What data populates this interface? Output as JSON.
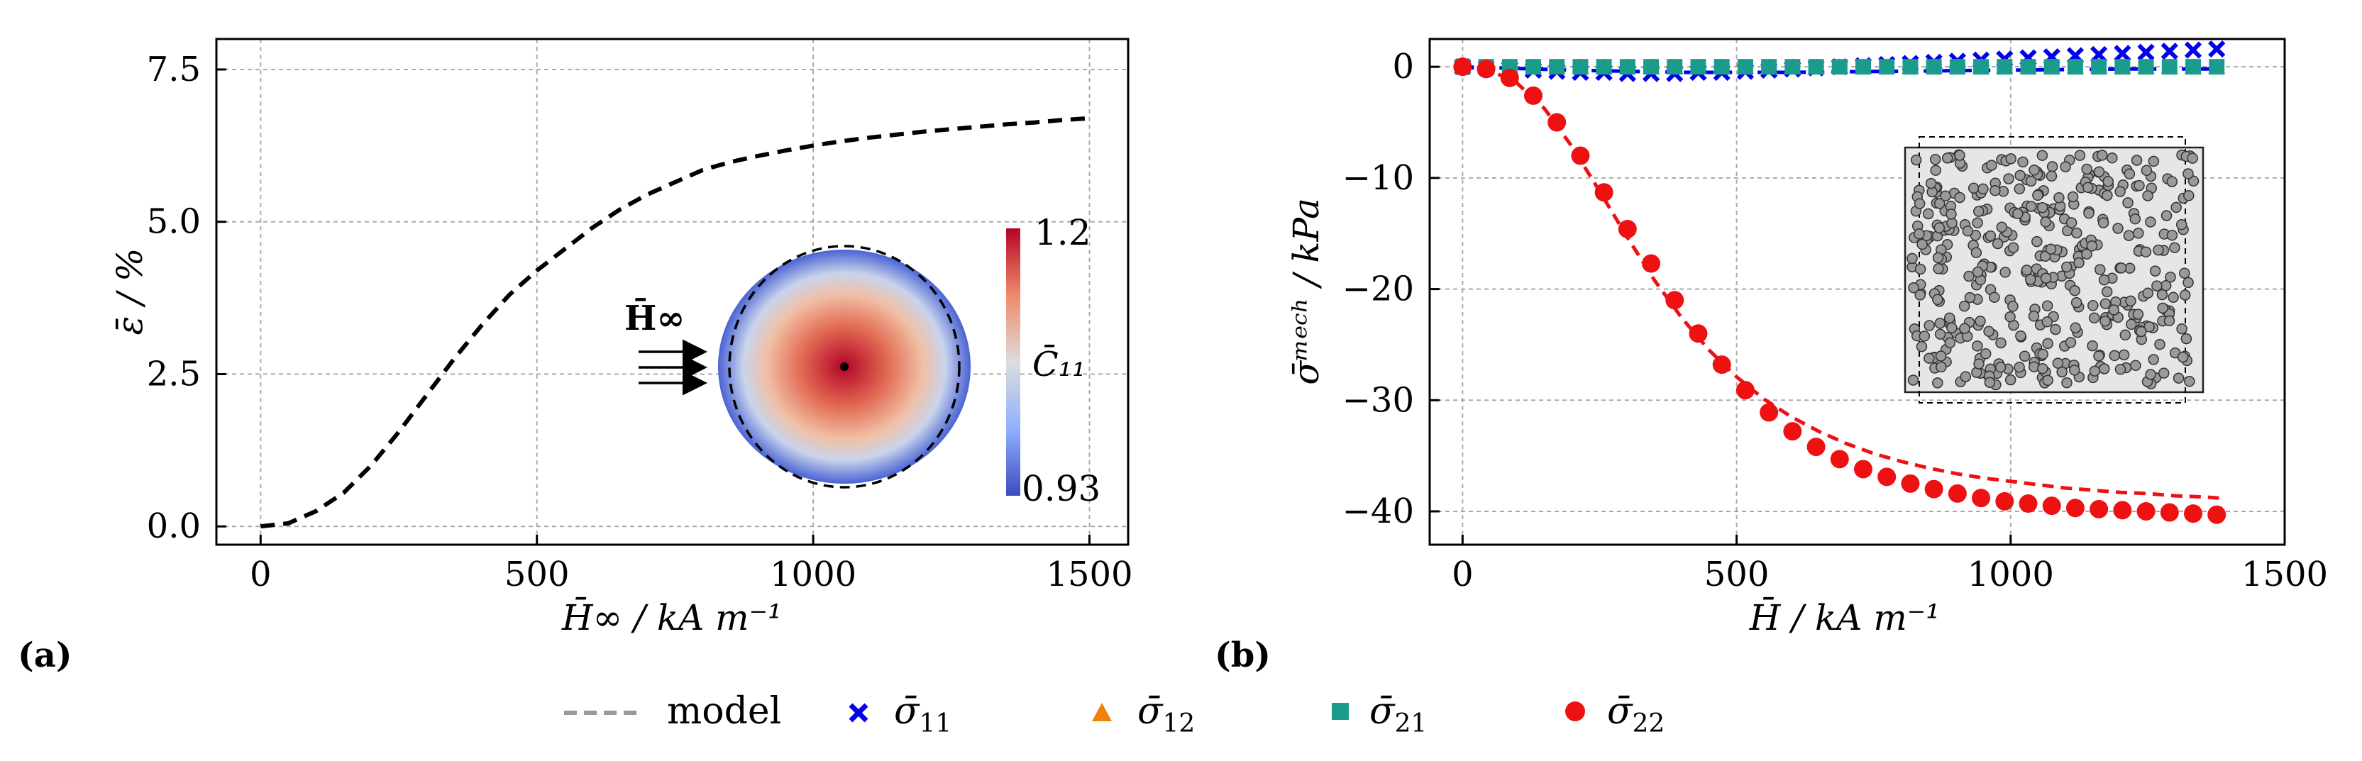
{
  "chart_data": [
    {
      "panel": "(a)",
      "type": "line",
      "xlabel": "H̄∞ / kA m⁻¹",
      "ylabel": "ε̄ / %",
      "xlim": [
        -80,
        1570
      ],
      "ylim": [
        -0.3,
        8.0
      ],
      "xticks": [
        0,
        500,
        1000,
        1500
      ],
      "xtick_labels": [
        "0",
        "500",
        "1000",
        "1500"
      ],
      "yticks": [
        0.0,
        2.5,
        5.0,
        7.5
      ],
      "ytick_labels": [
        "0.0",
        "2.5",
        "5.0",
        "7.5"
      ],
      "grid": true,
      "series": [
        {
          "name": "model",
          "style": "dashed",
          "color": "#000000",
          "x": [
            0,
            50,
            100,
            150,
            200,
            250,
            300,
            350,
            400,
            450,
            500,
            550,
            600,
            650,
            700,
            750,
            800,
            850,
            900,
            950,
            1000,
            1050,
            1100,
            1150,
            1200,
            1250,
            1300,
            1350,
            1400,
            1450,
            1500
          ],
          "y": [
            0.0,
            0.05,
            0.25,
            0.55,
            1.0,
            1.55,
            2.15,
            2.75,
            3.3,
            3.8,
            4.2,
            4.55,
            4.9,
            5.2,
            5.45,
            5.65,
            5.85,
            5.98,
            6.08,
            6.17,
            6.25,
            6.32,
            6.38,
            6.43,
            6.48,
            6.52,
            6.56,
            6.6,
            6.63,
            6.67,
            6.7
          ]
        }
      ],
      "inset": {
        "field_label": "C̄₁₁",
        "colorbar_max": "1.2",
        "colorbar_min": "0.93",
        "field_arrow_label": "H̄∞",
        "colors": {
          "high": "#b40426",
          "mid": "#dddddd",
          "low": "#3b4cc0"
        }
      }
    },
    {
      "panel": "(b)",
      "type": "scatter",
      "xlabel": "H̄ / kA m⁻¹",
      "ylabel": "σ̄ᵐᵉᶜʰ / kPa",
      "xlim": [
        -60,
        1500
      ],
      "ylim": [
        -43,
        2.5
      ],
      "xticks": [
        0,
        500,
        1000,
        1500
      ],
      "xtick_labels": [
        "0",
        "500",
        "1000",
        "1500"
      ],
      "yticks": [
        0,
        -10,
        -20,
        -30,
        -40
      ],
      "ytick_labels": [
        "0",
        "−10",
        "−20",
        "−30",
        "−40"
      ],
      "grid": true,
      "x": [
        0,
        43,
        86,
        129,
        172,
        215,
        258,
        301,
        344,
        387,
        430,
        473,
        516,
        559,
        602,
        645,
        688,
        731,
        774,
        817,
        860,
        903,
        946,
        989,
        1032,
        1075,
        1118,
        1161,
        1204,
        1247,
        1290,
        1333,
        1376
      ],
      "series": [
        {
          "name": "σ̄₁₁",
          "marker": "x",
          "color": "#0000ee",
          "y": [
            0,
            -0.1,
            -0.2,
            -0.3,
            -0.4,
            -0.5,
            -0.5,
            -0.6,
            -0.6,
            -0.6,
            -0.5,
            -0.5,
            -0.4,
            -0.3,
            -0.2,
            -0.1,
            0.0,
            0.1,
            0.2,
            0.3,
            0.4,
            0.5,
            0.6,
            0.7,
            0.8,
            0.9,
            1.0,
            1.1,
            1.2,
            1.3,
            1.4,
            1.5,
            1.6
          ]
        },
        {
          "name": "σ̄₁₂",
          "marker": "triangle",
          "color": "#f0820a",
          "y": [
            0,
            0,
            0,
            0,
            0,
            0,
            0,
            0,
            0,
            0,
            0,
            0,
            0,
            0,
            0,
            0,
            0,
            0,
            0,
            0,
            0,
            0,
            0,
            0,
            0,
            0,
            0,
            0,
            0,
            0,
            0,
            0,
            0
          ]
        },
        {
          "name": "σ̄₂₁",
          "marker": "square",
          "color": "#1a9b8c",
          "y": [
            0,
            0,
            0,
            0,
            0,
            0,
            0,
            0,
            0,
            0,
            0,
            0,
            0,
            0,
            0,
            0,
            0,
            0,
            0,
            0,
            0,
            0,
            0,
            0,
            0,
            0,
            0,
            0,
            0,
            0,
            0,
            0,
            0
          ]
        },
        {
          "name": "σ̄₂₂",
          "marker": "circle",
          "color": "#ee1111",
          "y": [
            0,
            -0.2,
            -1.0,
            -2.6,
            -5.0,
            -8.0,
            -11.3,
            -14.6,
            -17.7,
            -21.0,
            -24.0,
            -26.8,
            -29.1,
            -31.1,
            -32.8,
            -34.2,
            -35.3,
            -36.2,
            -36.9,
            -37.5,
            -38.0,
            -38.4,
            -38.8,
            -39.1,
            -39.3,
            -39.5,
            -39.7,
            -39.8,
            -39.9,
            -40.0,
            -40.1,
            -40.2,
            -40.3
          ]
        }
      ],
      "model_curves": [
        {
          "name": "model σ̄₂₂",
          "color": "#ee1111",
          "x": [
            0,
            50,
            100,
            150,
            200,
            250,
            300,
            350,
            400,
            450,
            500,
            550,
            600,
            650,
            700,
            750,
            800,
            850,
            900,
            950,
            1000,
            1050,
            1100,
            1150,
            1200,
            1250,
            1300,
            1350,
            1380
          ],
          "y": [
            0,
            -0.3,
            -1.5,
            -3.8,
            -7.2,
            -11.2,
            -15.3,
            -19.2,
            -22.6,
            -25.5,
            -27.9,
            -29.9,
            -31.5,
            -32.8,
            -33.9,
            -34.8,
            -35.5,
            -36.1,
            -36.6,
            -37.0,
            -37.3,
            -37.6,
            -37.9,
            -38.1,
            -38.3,
            -38.4,
            -38.6,
            -38.7,
            -38.8
          ]
        },
        {
          "name": "model σ̄₁₁",
          "color": "#0000ee",
          "x": [
            0,
            200,
            400,
            600,
            800,
            1000,
            1200,
            1380
          ],
          "y": [
            0,
            -0.3,
            -0.5,
            -0.5,
            -0.4,
            -0.3,
            -0.2,
            -0.2
          ]
        }
      ]
    }
  ],
  "panel_labels": {
    "a": "(a)",
    "b": "(b)"
  },
  "legend": {
    "model": "model",
    "s11": "σ̄",
    "s11_sub": "11",
    "s12": "σ̄",
    "s12_sub": "12",
    "s21": "σ̄",
    "s21_sub": "21",
    "s22": "σ̄",
    "s22_sub": "22"
  }
}
